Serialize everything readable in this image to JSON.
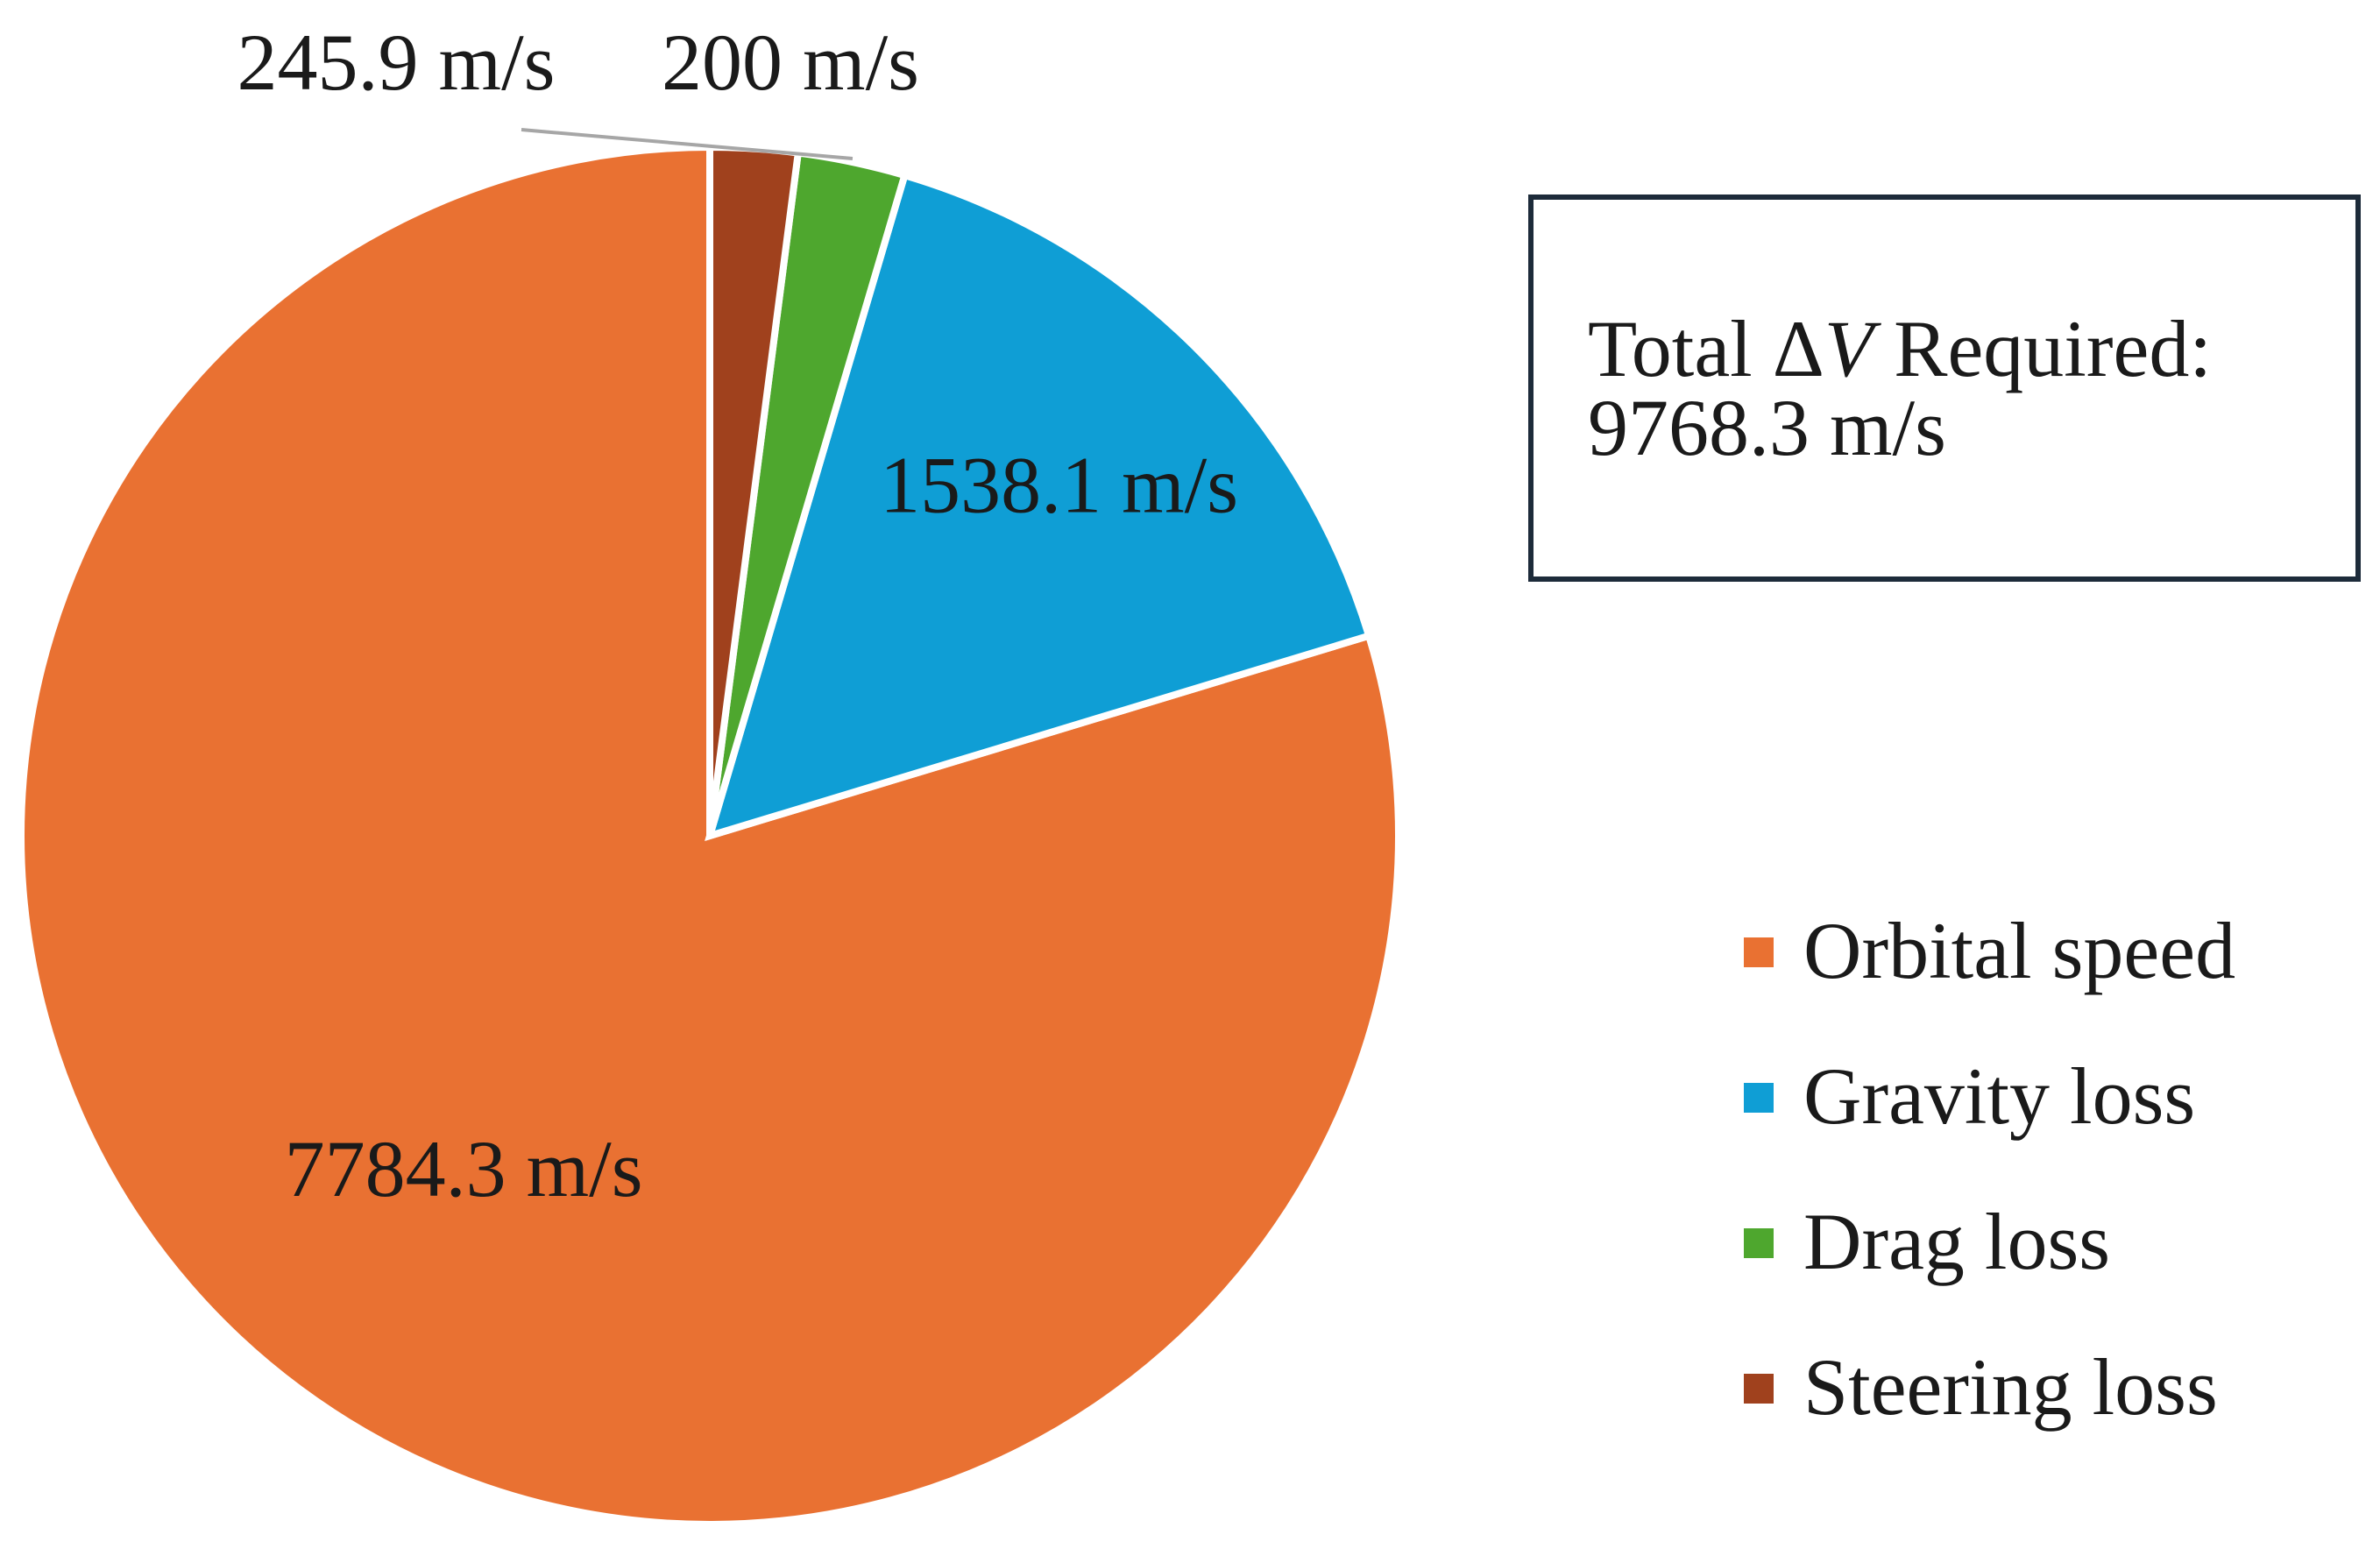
{
  "chart_data": {
    "type": "pie",
    "title": "",
    "categories": [
      "Orbital speed",
      "Gravity loss",
      "Drag loss",
      "Steering loss"
    ],
    "values": [
      7784.3,
      1538.1,
      245.9,
      200
    ],
    "value_labels": [
      "7784.3 m/s",
      "1538.1 m/s",
      "245.9 m/s",
      "200 m/s"
    ],
    "colors": [
      "#E97132",
      "#0F9ED5",
      "#4EA72E",
      "#A0411D"
    ],
    "start_angle": "12 o'clock",
    "direction": "counterclockwise",
    "legend": {
      "placement": "right",
      "entries": [
        "Orbital speed",
        "Gravity loss",
        "Drag loss",
        "Steering loss"
      ]
    },
    "annotation": {
      "line1_prefix": "Total ",
      "line1_delta": "Δ",
      "line1_v": "V",
      "line1_suffix": " Required:",
      "line2": "9768.3 m/s"
    }
  }
}
